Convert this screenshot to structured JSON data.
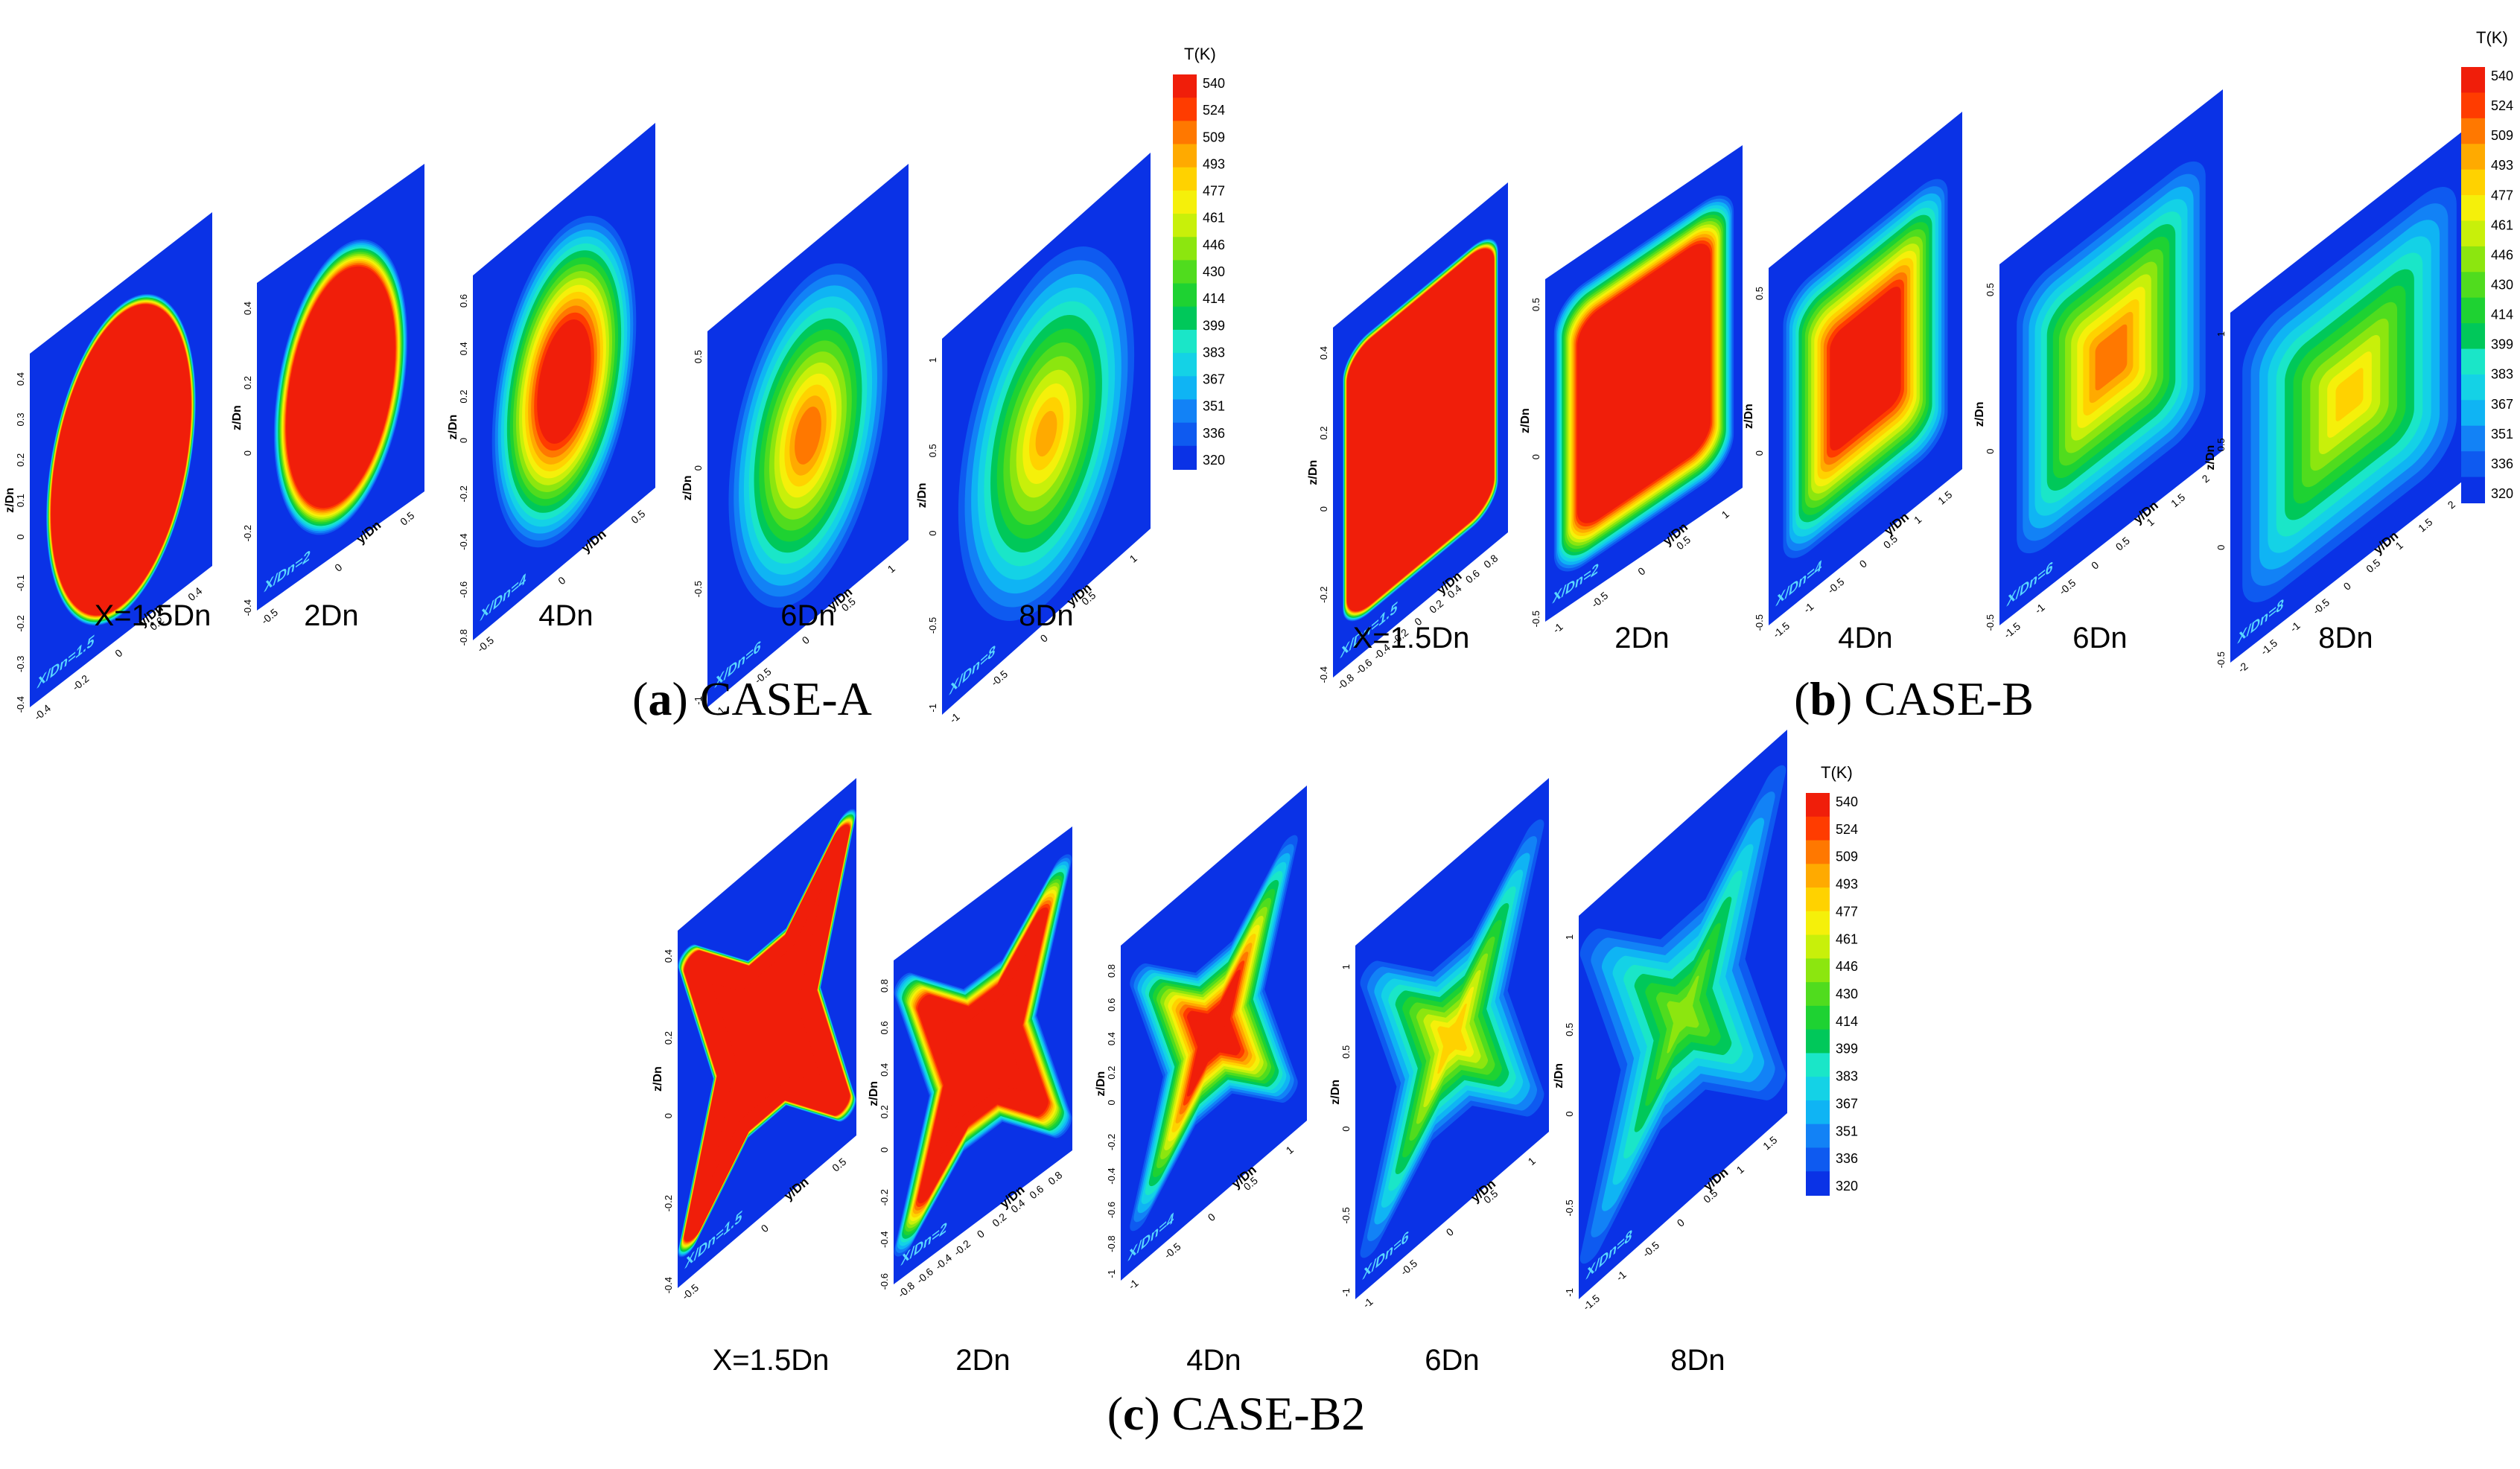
{
  "colors": {
    "background": "#ffffff",
    "plane": "#0a32e6",
    "text": "#000000",
    "plane_label": "#5ad7ff",
    "scale": [
      "#0a32e6",
      "#0e5af0",
      "#1282f6",
      "#0fb4f4",
      "#14d2e6",
      "#1ae6c8",
      "#00c85a",
      "#1ed232",
      "#50dc1e",
      "#8ce60f",
      "#c8f00a",
      "#f5f00a",
      "#ffd200",
      "#ffaa00",
      "#ff7800",
      "#ff3c00",
      "#f01e0a"
    ]
  },
  "colorbar": {
    "title": "T(K)",
    "ticks": [
      "540",
      "524",
      "509",
      "493",
      "477",
      "461",
      "446",
      "430",
      "414",
      "399",
      "383",
      "367",
      "351",
      "336",
      "320"
    ]
  },
  "panels": [
    {
      "id": "a",
      "letter": "a",
      "name": " CASE-A",
      "shape": "circle",
      "stations": [
        {
          "label": "X=1.5Dn",
          "plane_text": "X/Dn=1.5",
          "peak": 1.0,
          "core": 0.93,
          "spread": 0.07,
          "zlabel": "z/Dn",
          "ylabel": "y/Dn",
          "yticks": [
            "-0.4",
            "-0.2",
            "0",
            "0.2",
            "0.4"
          ],
          "zticks": [
            "-0.4",
            "-0.3",
            "-0.2",
            "-0.1",
            "0",
            "0.1",
            "0.2",
            "0.3",
            "0.4"
          ]
        },
        {
          "label": "2Dn",
          "plane_text": "X/Dn=2",
          "peak": 1.0,
          "core": 0.78,
          "spread": 0.2,
          "zlabel": "z/Dn",
          "ylabel": "y/Dn",
          "yticks": [
            "-0.5",
            "0",
            "0.5"
          ],
          "zticks": [
            "-0.4",
            "-0.2",
            "0",
            "0.2",
            "0.4"
          ]
        },
        {
          "label": "4Dn",
          "plane_text": "X/Dn=4",
          "peak": 1.0,
          "core": 0.32,
          "spread": 0.68,
          "zlabel": "z/Dn",
          "ylabel": "y/Dn",
          "yticks": [
            "-0.5",
            "0",
            "0.5"
          ],
          "zticks": [
            "-0.8",
            "-0.6",
            "-0.4",
            "-0.2",
            "0",
            "0.2",
            "0.4",
            "0.6"
          ]
        },
        {
          "label": "6Dn",
          "plane_text": "X/Dn=6",
          "peak": 0.9,
          "core": 0.1,
          "spread": 0.92,
          "zlabel": "z/Dn",
          "ylabel": "y/Dn",
          "yticks": [
            "-1",
            "-0.5",
            "0",
            "0.5",
            "1"
          ],
          "zticks": [
            "-1",
            "-0.5",
            "0",
            "0.5"
          ]
        },
        {
          "label": "8Dn",
          "plane_text": "X/Dn=8",
          "peak": 0.82,
          "core": 0.05,
          "spread": 1.05,
          "zlabel": "z/Dn",
          "ylabel": "y/Dn",
          "yticks": [
            "-1",
            "-0.5",
            "0",
            "0.5",
            "1"
          ],
          "zticks": [
            "-1",
            "-0.5",
            "0",
            "0.5",
            "1"
          ]
        }
      ]
    },
    {
      "id": "b",
      "letter": "b",
      "name": " CASE-B",
      "shape": "rect",
      "stations": [
        {
          "label": "X=1.5Dn",
          "plane_text": "X/Dn=1.5",
          "peak": 1.0,
          "core": 0.95,
          "spread": 0.06,
          "zlabel": "z/Dn",
          "ylabel": "y/Dn",
          "yticks": [
            "-0.8",
            "-0.6",
            "-0.4",
            "-0.2",
            "0",
            "0.2",
            "0.4",
            "0.6",
            "0.8"
          ],
          "zticks": [
            "-0.4",
            "-0.2",
            "0",
            "0.2",
            "0.4"
          ]
        },
        {
          "label": "2Dn",
          "plane_text": "X/Dn=2",
          "peak": 1.0,
          "core": 0.75,
          "spread": 0.3,
          "zlabel": "z/Dn",
          "ylabel": "y/Dn",
          "yticks": [
            "-1",
            "-0.5",
            "0",
            "0.5",
            "1"
          ],
          "zticks": [
            "-0.5",
            "0",
            "0.5"
          ]
        },
        {
          "label": "4Dn",
          "plane_text": "X/Dn=4",
          "peak": 1.0,
          "core": 0.38,
          "spread": 0.62,
          "zlabel": "z/Dn",
          "ylabel": "y/Dn",
          "yticks": [
            "-1.5",
            "-1",
            "-0.5",
            "0",
            "0.5",
            "1",
            "1.5"
          ],
          "zticks": [
            "-0.5",
            "0",
            "0.5"
          ]
        },
        {
          "label": "6Dn",
          "plane_text": "X/Dn=6",
          "peak": 0.9,
          "core": 0.1,
          "spread": 0.92,
          "zlabel": "z/Dn",
          "ylabel": "y/Dn",
          "yticks": [
            "-1.5",
            "-1",
            "-0.5",
            "0",
            "0.5",
            "1",
            "1.5",
            "2"
          ],
          "zticks": [
            "-0.5",
            "0",
            "0.5"
          ]
        },
        {
          "label": "8Dn",
          "plane_text": "X/Dn=8",
          "peak": 0.72,
          "core": 0.05,
          "spread": 1.05,
          "zlabel": "z/Dn",
          "ylabel": "y/Dn",
          "yticks": [
            "-2",
            "-1.5",
            "-1",
            "-0.5",
            "0",
            "0.5",
            "1",
            "1.5",
            "2"
          ],
          "zticks": [
            "-0.5",
            "0",
            "0.5",
            "1"
          ]
        }
      ]
    },
    {
      "id": "c",
      "letter": "c",
      "name": " CASE-B2",
      "shape": "cross",
      "stations": [
        {
          "label": "X=1.5Dn",
          "plane_text": "X/Dn=1.5",
          "peak": 1.0,
          "core": 0.93,
          "spread": 0.08,
          "zlabel": "z/Dn",
          "ylabel": "y/Dn",
          "yticks": [
            "-0.5",
            "0",
            "0.5"
          ],
          "zticks": [
            "-0.4",
            "-0.2",
            "0",
            "0.2",
            "0.4"
          ]
        },
        {
          "label": "2Dn",
          "plane_text": "X/Dn=2",
          "peak": 1.0,
          "core": 0.72,
          "spread": 0.3,
          "zlabel": "z/Dn",
          "ylabel": "y/Dn",
          "yticks": [
            "-0.8",
            "-0.6",
            "-0.4",
            "-0.2",
            "0",
            "0.2",
            "0.4",
            "0.6",
            "0.8"
          ],
          "zticks": [
            "-0.6",
            "-0.4",
            "-0.2",
            "0",
            "0.2",
            "0.4",
            "0.6",
            "0.8"
          ]
        },
        {
          "label": "4Dn",
          "plane_text": "X/Dn=4",
          "peak": 0.97,
          "core": 0.25,
          "spread": 0.7,
          "zlabel": "z/Dn",
          "ylabel": "y/Dn",
          "yticks": [
            "-1",
            "-0.5",
            "0",
            "0.5",
            "1"
          ],
          "zticks": [
            "-1",
            "-0.8",
            "-0.6",
            "-0.4",
            "-0.2",
            "0",
            "0.2",
            "0.4",
            "0.6",
            "0.8"
          ]
        },
        {
          "label": "6Dn",
          "plane_text": "X/Dn=6",
          "peak": 0.72,
          "core": 0.08,
          "spread": 0.95,
          "zlabel": "z/Dn",
          "ylabel": "y/Dn",
          "yticks": [
            "-1",
            "-0.5",
            "0",
            "0.5",
            "1"
          ],
          "zticks": [
            "-1",
            "-0.5",
            "0",
            "0.5",
            "1"
          ]
        },
        {
          "label": "8Dn",
          "plane_text": "X/Dn=8",
          "peak": 0.55,
          "core": 0.05,
          "spread": 1.05,
          "zlabel": "z/Dn",
          "ylabel": "y/Dn",
          "yticks": [
            "-1.5",
            "-1",
            "-0.5",
            "0",
            "0.5",
            "1",
            "1.5"
          ],
          "zticks": [
            "-1",
            "-0.5",
            "0",
            "0.5",
            "1"
          ]
        }
      ]
    }
  ]
}
